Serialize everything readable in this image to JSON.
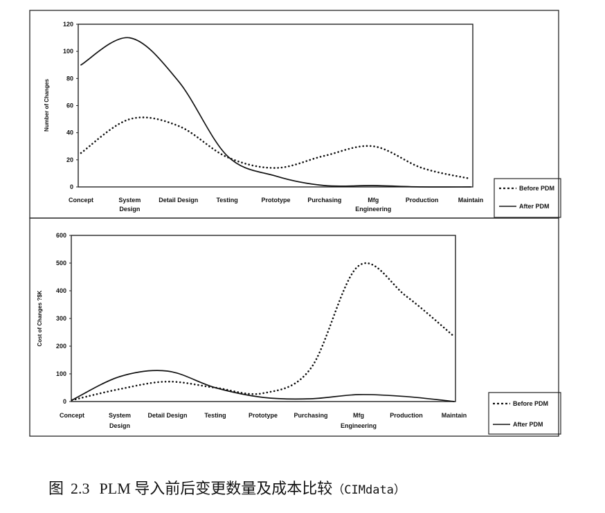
{
  "caption": {
    "figure_label": "图",
    "figure_number": "2.3",
    "text": "PLM 导入前后变更数量及成本比较",
    "source": "（CIMdata）"
  },
  "chart_data": [
    {
      "type": "line",
      "title": "",
      "xlabel": "",
      "ylabel": "Number of Changes",
      "categories": [
        "Concept",
        "System Design",
        "Detail Design",
        "Testing",
        "Prototype",
        "Purchasing",
        "Mfg Engineering",
        "Production",
        "Maintain"
      ],
      "ylim": [
        0,
        120
      ],
      "yticks": [
        0,
        20,
        40,
        60,
        80,
        100,
        120
      ],
      "grid": false,
      "legend_position": "right-bottom",
      "series": [
        {
          "name": "Before PDM",
          "style": "dotted",
          "values": [
            25,
            50,
            45,
            22,
            14,
            23,
            30,
            14,
            6
          ]
        },
        {
          "name": "After PDM",
          "style": "solid",
          "values": [
            90,
            110,
            78,
            23,
            8,
            1,
            1,
            0,
            0
          ]
        }
      ]
    },
    {
      "type": "line",
      "title": "",
      "xlabel": "",
      "ylabel": "Cost of Changes ?$K",
      "categories": [
        "Concept",
        "System Design",
        "Detail Design",
        "Testing",
        "Prototype",
        "Purchasing",
        "Mfg Engineering",
        "Production",
        "Maintain"
      ],
      "ylim": [
        0,
        600
      ],
      "yticks": [
        0,
        100,
        200,
        300,
        400,
        500,
        600
      ],
      "grid": false,
      "legend_position": "right-bottom",
      "series": [
        {
          "name": "Before PDM",
          "style": "dotted",
          "values": [
            5,
            45,
            72,
            50,
            30,
            120,
            490,
            380,
            235
          ]
        },
        {
          "name": "After PDM",
          "style": "solid",
          "values": [
            5,
            90,
            110,
            50,
            15,
            10,
            25,
            18,
            0
          ]
        }
      ]
    }
  ],
  "colors": {
    "line": "#111111",
    "frame": "#222222",
    "background": "#ffffff"
  }
}
